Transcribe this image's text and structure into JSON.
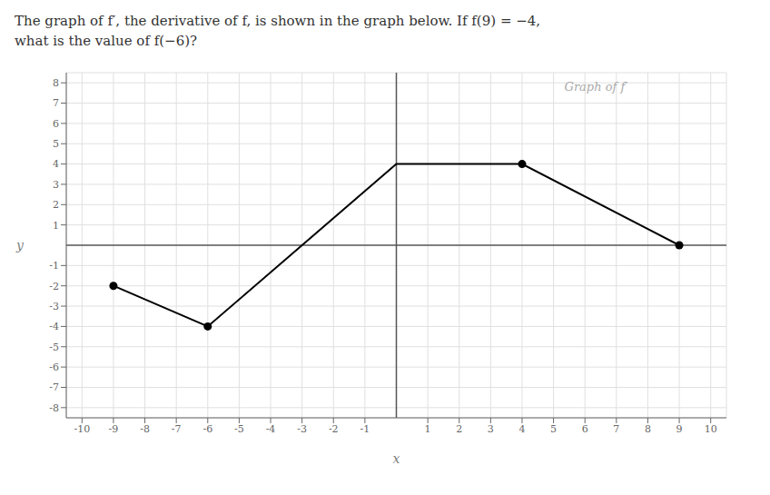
{
  "chart_data": {
    "type": "line",
    "title": "The graph of f′, the derivative of f, is shown in the graph below. If f(9) = −4,",
    "subtitle": "what is the value of f(−6)?",
    "x_label": "x",
    "y_label": "y",
    "series": [
      {
        "type": "line",
        "marker": "none",
        "color": "#000000",
        "x": [
          -9,
          -6,
          -3,
          0,
          4,
          9
        ],
        "values": [
          -2,
          -4,
          0,
          4,
          4,
          0
        ]
      },
      {
        "type": "scatter",
        "marker": "circle",
        "color": "#000000",
        "x": [
          -9,
          -6,
          4,
          9
        ],
        "values": [
          -2,
          -4,
          4,
          0
        ]
      }
    ],
    "xlim": [
      -10.5,
      10.5
    ],
    "ylim": [
      -8.5,
      8.5
    ],
    "xticks": [
      -10,
      -9,
      -8,
      -7,
      -6,
      -5,
      -4,
      -3,
      -2,
      -1,
      1,
      2,
      3,
      4,
      5,
      6,
      7,
      8,
      9,
      10
    ],
    "yticks": [
      -8,
      -7,
      -6,
      -5,
      -4,
      -3,
      -2,
      -1,
      1,
      2,
      3,
      4,
      5,
      6,
      7,
      8
    ],
    "grid": true,
    "annotations": [
      {
        "text": "Graph of f′",
        "x": 5.2,
        "y": 7.8,
        "color": "#aaaaaa"
      }
    ]
  }
}
